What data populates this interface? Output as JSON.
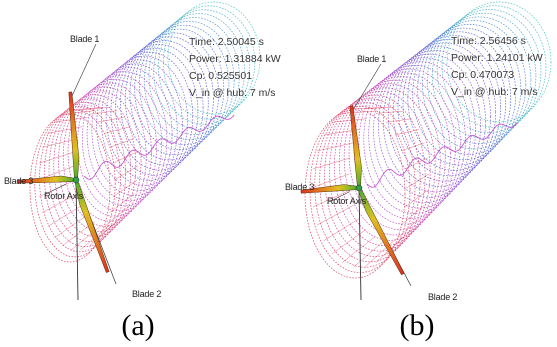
{
  "colors": {
    "wake_near": "#e0304a",
    "wake_mid": "#c040c8",
    "wake_far": "#4858d8",
    "wake_end": "#38c8c0",
    "blade_root": "#e03020",
    "blade_mid": "#e0c020",
    "blade_tip": "#40b030"
  },
  "panels": [
    {
      "caption": "(a)",
      "labels": {
        "blade1": "Blade 1",
        "blade2": "Blade 2",
        "blade3": "Blade 3",
        "rotor_axis": "Rotor Axis"
      },
      "info": {
        "time": "Time: 2.50045 s",
        "power": "Power: 1.31884 kW",
        "cp": "Cp: 0.525501",
        "vin": "V_in @ hub: 7 m/s"
      }
    },
    {
      "caption": "(b)",
      "labels": {
        "blade1": "Blade 1",
        "blade2": "Blade 2",
        "blade3": "Blade 3",
        "rotor_axis": "Rotor Axis"
      },
      "info": {
        "time": "Time: 2.56456 s",
        "power": "Power: 1.24101 kW",
        "cp": "Cp: 0.470073",
        "vin": "V_in @ hub: 7 m/s"
      }
    }
  ]
}
